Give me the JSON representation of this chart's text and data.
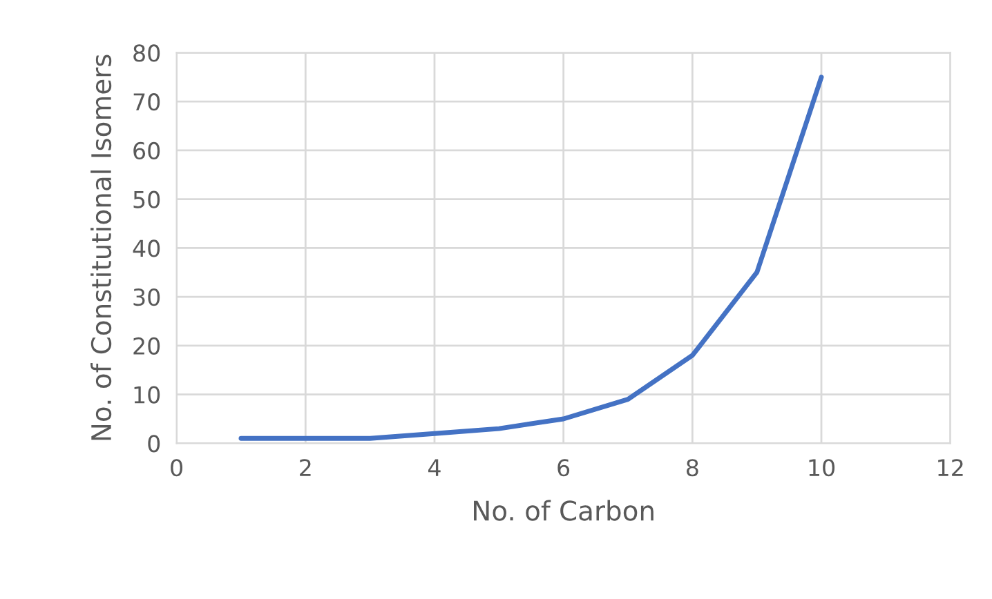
{
  "chart_data": {
    "type": "line",
    "xlabel": "No. of Carbon",
    "ylabel": "No. of Constitutional Isomers",
    "x": [
      1,
      2,
      3,
      4,
      5,
      6,
      7,
      8,
      9,
      10
    ],
    "series": [
      {
        "color": "#4472c4",
        "values": [
          1,
          1,
          1,
          2,
          3,
          5,
          9,
          18,
          35,
          75
        ]
      }
    ],
    "xlim": [
      0,
      12
    ],
    "xticks": [
      0,
      2,
      4,
      6,
      8,
      10,
      12
    ],
    "ylim": [
      0,
      80
    ],
    "yticks": [
      0,
      10,
      20,
      30,
      40,
      50,
      60,
      70,
      80
    ],
    "grid": true,
    "marker": "none",
    "line_style": "solid"
  }
}
